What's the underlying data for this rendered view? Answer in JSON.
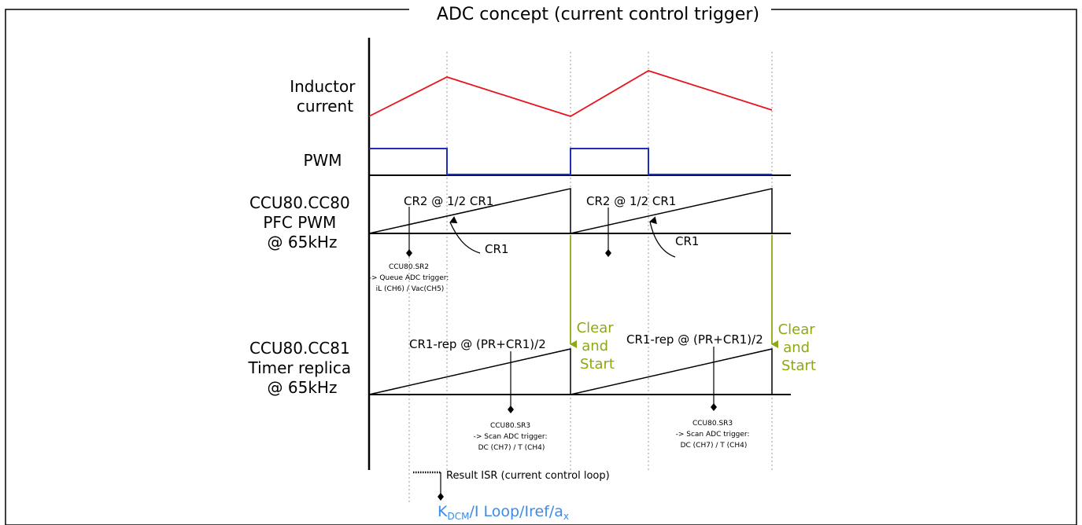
{
  "title": "ADC concept (current control trigger)",
  "labels": {
    "inductor_current_1": "Inductor",
    "inductor_current_2": "current",
    "pwm": "PWM",
    "cc80_1": "CCU80.CC80",
    "cc80_2": "PFC PWM",
    "cc80_3": "@ 65kHz",
    "cc81_1": "CCU80.CC81",
    "cc81_2": "Timer replica",
    "cc81_3": "@ 65kHz"
  },
  "annotations": {
    "cr2_left": "CR2 @ 1/2 CR1",
    "cr2_right": "CR2 @ 1/2 CR1",
    "cr1_left": "CR1",
    "cr1_right": "CR1",
    "sr2_line1": "CCU80.SR2",
    "sr2_line2": "-> Queue ADC trigger:",
    "sr2_line3": "iL (CH6) / Vac(CH5)",
    "cr1rep_left": "CR1-rep @ (PR+CR1)/2",
    "cr1rep_right": "CR1-rep @ (PR+CR1)/2",
    "sr3_left_1": "CCU80.SR3",
    "sr3_left_2": "-> Scan ADC trigger:",
    "sr3_left_3": "DC (CH7) / T (CH4)",
    "sr3_right_1": "CCU80.SR3",
    "sr3_right_2": "-> Scan ADC trigger:",
    "sr3_right_3": "DC (CH7) / T (CH4)",
    "clear_left_1": "Clear",
    "clear_left_2": "and",
    "clear_left_3": "Start",
    "clear_right_1": "Clear",
    "clear_right_2": "and",
    "clear_right_3": "Start",
    "result_isr": "Result ISR (current control loop)",
    "bottom_k": "K",
    "bottom_k_sub": "DCM",
    "bottom_rest": "/I Loop/Iref/a",
    "bottom_x_sub": "x"
  },
  "colors": {
    "inductor": "#e8141c",
    "pwm": "#1f2fb4",
    "trigger": "#8aaa10",
    "bottom_label": "#3c8be8",
    "ink": "#000000",
    "guide": "#999999"
  }
}
